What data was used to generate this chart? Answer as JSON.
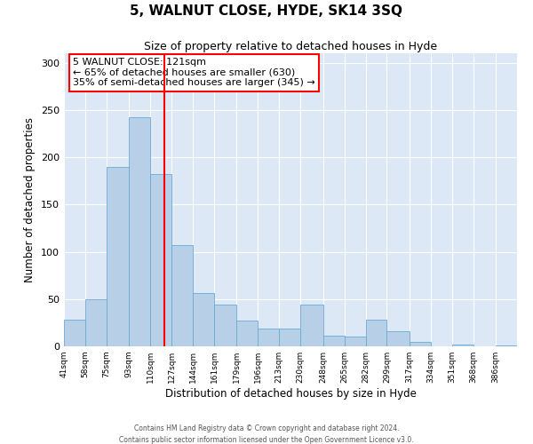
{
  "title": "5, WALNUT CLOSE, HYDE, SK14 3SQ",
  "subtitle": "Size of property relative to detached houses in Hyde",
  "xlabel": "Distribution of detached houses by size in Hyde",
  "ylabel": "Number of detached properties",
  "bin_labels": [
    "41sqm",
    "58sqm",
    "75sqm",
    "93sqm",
    "110sqm",
    "127sqm",
    "144sqm",
    "161sqm",
    "179sqm",
    "196sqm",
    "213sqm",
    "230sqm",
    "248sqm",
    "265sqm",
    "282sqm",
    "299sqm",
    "317sqm",
    "334sqm",
    "351sqm",
    "368sqm",
    "386sqm"
  ],
  "bin_edges": [
    41,
    58,
    75,
    93,
    110,
    127,
    144,
    161,
    179,
    196,
    213,
    230,
    248,
    265,
    282,
    299,
    317,
    334,
    351,
    368,
    386
  ],
  "bar_heights": [
    28,
    50,
    190,
    242,
    182,
    107,
    56,
    44,
    27,
    19,
    19,
    44,
    11,
    10,
    28,
    16,
    5,
    0,
    2,
    0,
    1
  ],
  "bar_color": "#b8cfe8",
  "bar_edgecolor": "#6aaad4",
  "vline_x": 121,
  "vline_color": "red",
  "annotation_title": "5 WALNUT CLOSE: 121sqm",
  "annotation_line1": "← 65% of detached houses are smaller (630)",
  "annotation_line2": "35% of semi-detached houses are larger (345) →",
  "annotation_box_color": "white",
  "annotation_box_edgecolor": "red",
  "ylim": [
    0,
    310
  ],
  "yticks": [
    0,
    50,
    100,
    150,
    200,
    250,
    300
  ],
  "background_color": "#dce8f5",
  "footer1": "Contains HM Land Registry data © Crown copyright and database right 2024.",
  "footer2": "Contains public sector information licensed under the Open Government Licence v3.0."
}
